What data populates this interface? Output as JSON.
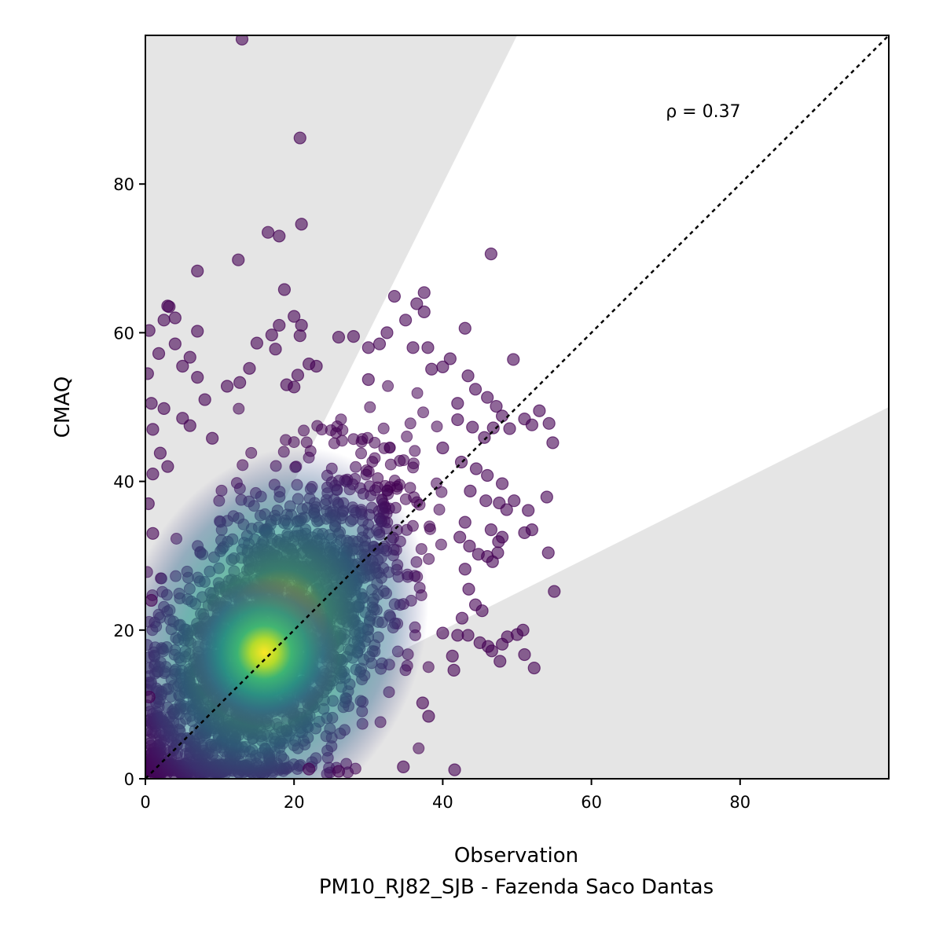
{
  "chart_data": {
    "type": "scatter",
    "xlabel": "Observation",
    "xlabel2": "PM10_RJ82_SJB - Fazenda Saco Dantas",
    "ylabel": "CMAQ",
    "xlim": [
      0,
      100
    ],
    "ylim": [
      0,
      100
    ],
    "xticks": [
      0,
      20,
      40,
      60,
      80
    ],
    "yticks": [
      0,
      20,
      40,
      60,
      80
    ],
    "annotation": "ρ = 0.37",
    "annotation_pos": [
      70,
      89
    ],
    "identity_line": true,
    "tolerance_band": {
      "upper_slope": 2,
      "lower_slope": 0.5,
      "color": "#e5e5e5"
    },
    "colormap": "viridis",
    "point_color_low": "#440154",
    "point_color_high": "#fde725",
    "point_alpha": 0.6,
    "density_core": {
      "center": [
        16,
        17
      ],
      "note": "dense cluster of several thousand points shaded by point density"
    },
    "points": [
      [
        13,
        99.5
      ],
      [
        20.8,
        86.2
      ],
      [
        21,
        74.6
      ],
      [
        16.5,
        73.5
      ],
      [
        18,
        73
      ],
      [
        12.5,
        69.8
      ],
      [
        7,
        68.3
      ],
      [
        46.5,
        70.6
      ],
      [
        18.7,
        65.8
      ],
      [
        37.5,
        65.4
      ],
      [
        3,
        63.6
      ],
      [
        3.2,
        63.5
      ],
      [
        33.5,
        64.9
      ],
      [
        36.5,
        63.9
      ],
      [
        2.5,
        61.7
      ],
      [
        4,
        62
      ],
      [
        20,
        62.2
      ],
      [
        21,
        61
      ],
      [
        18,
        61
      ],
      [
        0.5,
        60.3
      ],
      [
        7,
        60.2
      ],
      [
        43,
        60.6
      ],
      [
        20.8,
        59.6
      ],
      [
        17,
        59.7
      ],
      [
        15,
        58.6
      ],
      [
        26,
        59.4
      ],
      [
        28,
        59.5
      ],
      [
        32.5,
        60
      ],
      [
        35,
        61.7
      ],
      [
        37.5,
        62.8
      ],
      [
        1.8,
        57.2
      ],
      [
        4,
        58.5
      ],
      [
        17.5,
        57.8
      ],
      [
        30,
        58
      ],
      [
        31.5,
        58.5
      ],
      [
        36,
        58
      ],
      [
        38,
        58
      ],
      [
        41,
        56.5
      ],
      [
        49.5,
        56.4
      ],
      [
        5,
        55.5
      ],
      [
        6,
        56.7
      ],
      [
        14,
        55.2
      ],
      [
        22,
        55.8
      ],
      [
        23,
        55.5
      ],
      [
        38.5,
        55.1
      ],
      [
        40,
        55.4
      ],
      [
        0.3,
        54.5
      ],
      [
        7,
        54
      ],
      [
        20.5,
        54.3
      ],
      [
        30,
        53.7
      ],
      [
        43.4,
        54.2
      ],
      [
        0.8,
        50.5
      ],
      [
        2.5,
        49.8
      ],
      [
        8,
        51
      ],
      [
        11,
        52.8
      ],
      [
        12.7,
        53.3
      ],
      [
        19,
        53
      ],
      [
        20,
        52.7
      ],
      [
        44.4,
        52.4
      ],
      [
        42,
        50.5
      ],
      [
        46,
        51.3
      ],
      [
        47.2,
        50.1
      ],
      [
        1,
        47
      ],
      [
        5,
        48.5
      ],
      [
        6,
        47.5
      ],
      [
        9,
        45.8
      ],
      [
        42,
        48.3
      ],
      [
        44,
        47.3
      ],
      [
        45.6,
        45.9
      ],
      [
        46.8,
        47.2
      ],
      [
        48,
        48.8
      ],
      [
        49,
        47.1
      ],
      [
        51,
        48.4
      ],
      [
        53,
        49.5
      ],
      [
        52,
        47.6
      ],
      [
        54.3,
        47.8
      ],
      [
        54.8,
        45.2
      ],
      [
        40,
        44.5
      ],
      [
        42.5,
        42.6
      ],
      [
        44.5,
        41.7
      ],
      [
        46,
        40.8
      ],
      [
        48,
        39.7
      ],
      [
        43.7,
        38.7
      ],
      [
        45.8,
        37.4
      ],
      [
        47.6,
        37.1
      ],
      [
        49.6,
        37.4
      ],
      [
        48.6,
        36.2
      ],
      [
        51.5,
        36.1
      ],
      [
        54,
        37.9
      ],
      [
        1,
        41
      ],
      [
        2,
        43.8
      ],
      [
        3,
        42
      ],
      [
        43,
        34.5
      ],
      [
        46.5,
        33.5
      ],
      [
        48,
        32.5
      ],
      [
        51,
        33.1
      ],
      [
        52,
        33.5
      ],
      [
        42.3,
        32.5
      ],
      [
        43.6,
        31.3
      ],
      [
        44.8,
        30.2
      ],
      [
        46,
        29.9
      ],
      [
        47.5,
        31.9
      ],
      [
        43,
        28.2
      ],
      [
        46.7,
        29.2
      ],
      [
        47.4,
        30.4
      ],
      [
        54.2,
        30.4
      ],
      [
        43.5,
        25.5
      ],
      [
        55,
        25.2
      ],
      [
        44.4,
        23.4
      ],
      [
        45.3,
        22.6
      ],
      [
        42.6,
        21.6
      ],
      [
        40,
        19.6
      ],
      [
        42,
        19.3
      ],
      [
        43.4,
        19.3
      ],
      [
        45,
        18.3
      ],
      [
        46.1,
        17.8
      ],
      [
        46.6,
        17.2
      ],
      [
        48,
        18.1
      ],
      [
        48.7,
        19.1
      ],
      [
        50,
        19.4
      ],
      [
        50.8,
        20
      ],
      [
        51,
        16.7
      ],
      [
        52.3,
        14.9
      ],
      [
        47.7,
        15.8
      ],
      [
        41.3,
        16.5
      ],
      [
        41.5,
        14.6
      ],
      [
        37.3,
        10.2
      ],
      [
        38.1,
        8.4
      ],
      [
        34.7,
        1.6
      ],
      [
        41.6,
        1.2
      ],
      [
        26,
        1
      ],
      [
        22,
        1.3
      ],
      [
        0.5,
        11
      ],
      [
        0.8,
        24
      ],
      [
        1,
        33
      ],
      [
        0.4,
        37
      ]
    ]
  }
}
